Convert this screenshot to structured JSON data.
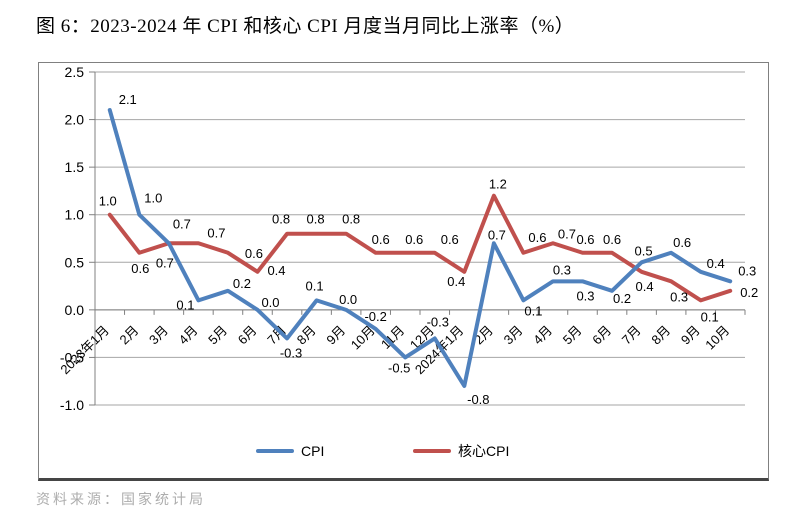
{
  "title": "图 6：2023-2024 年 CPI 和核心 CPI 月度当月同比上涨率（%）",
  "source": "资料来源：国家统计局",
  "legend": {
    "cpi": "CPI",
    "core": "核心CPI"
  },
  "colors": {
    "cpi": "#4F81BD",
    "core": "#C0504D",
    "grid": "#A6A6A6",
    "axis": "#808080",
    "data_label": "#000000",
    "frame": "#808080",
    "source_text": "#ADADAD"
  },
  "chart_data": {
    "type": "line",
    "title": "图 6：2023-2024 年 CPI 和核心 CPI 月度当月同比上涨率（%）",
    "xlabel": "",
    "ylabel": "",
    "categories": [
      "2023年1月",
      "2月",
      "3月",
      "4月",
      "5月",
      "6月",
      "7月",
      "8月",
      "9月",
      "10月",
      "11月",
      "12月",
      "2024年1月",
      "2月",
      "3月",
      "4月",
      "5月",
      "6月",
      "7月",
      "8月",
      "9月",
      "10月"
    ],
    "series": [
      {
        "name": "CPI",
        "values": [
          2.1,
          1.0,
          0.7,
          0.1,
          0.2,
          0.0,
          -0.3,
          0.1,
          0.0,
          -0.2,
          -0.5,
          -0.3,
          -0.8,
          0.7,
          0.1,
          0.3,
          0.3,
          0.2,
          0.5,
          0.6,
          0.4,
          0.3
        ]
      },
      {
        "name": "核心CPI",
        "values": [
          1.0,
          0.6,
          0.7,
          0.7,
          0.6,
          0.4,
          0.8,
          0.8,
          0.8,
          0.6,
          0.6,
          0.6,
          0.4,
          1.2,
          0.6,
          0.7,
          0.6,
          0.6,
          0.4,
          0.3,
          0.1,
          0.2
        ]
      }
    ],
    "ylim": [
      -1.0,
      2.5
    ],
    "yticks": [
      2.5,
      2.0,
      1.5,
      1.0,
      0.5,
      0.0,
      -0.5,
      -1.0
    ],
    "grid": true,
    "data_labels": true,
    "legend_position": "bottom"
  }
}
